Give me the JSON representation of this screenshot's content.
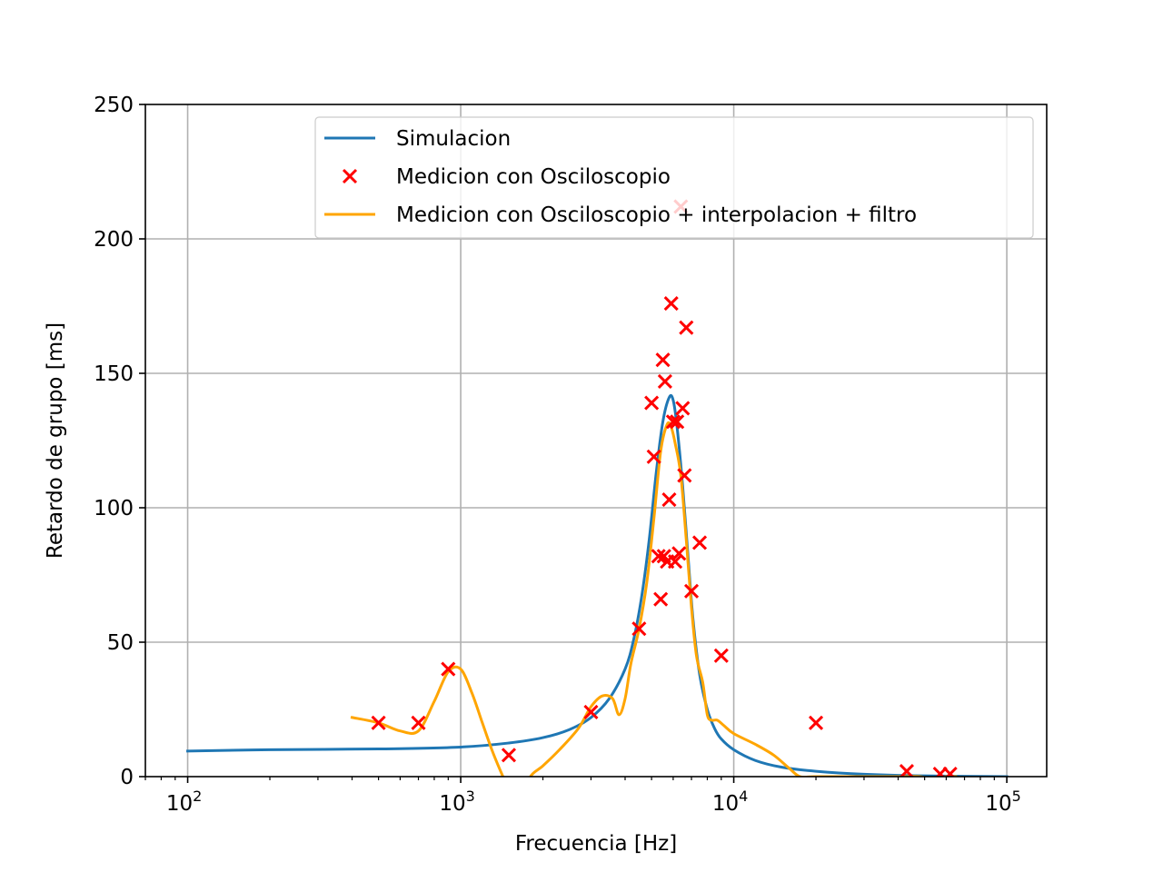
{
  "chart_data": {
    "type": "line",
    "xlabel": "Frecuencia [Hz]",
    "ylabel": "Retardo de grupo [ms]",
    "xscale": "log",
    "xlim": [
      70,
      140000
    ],
    "ylim": [
      0,
      250
    ],
    "grid": true,
    "legend_position": "top-right",
    "x_ticks": [
      {
        "value": 100,
        "base": "10",
        "exp": "2"
      },
      {
        "value": 1000,
        "base": "10",
        "exp": "3"
      },
      {
        "value": 10000,
        "base": "10",
        "exp": "4"
      },
      {
        "value": 100000,
        "base": "10",
        "exp": "5"
      }
    ],
    "y_ticks": [
      {
        "value": 0,
        "label": "0"
      },
      {
        "value": 50,
        "label": "50"
      },
      {
        "value": 100,
        "label": "100"
      },
      {
        "value": 150,
        "label": "150"
      },
      {
        "value": 200,
        "label": "200"
      },
      {
        "value": 250,
        "label": "250"
      }
    ],
    "series": [
      {
        "name": "Simulacion",
        "kind": "line",
        "color": "#1f77b4",
        "x": [
          100,
          200,
          500,
          1000,
          1500,
          2000,
          2500,
          3000,
          3500,
          4000,
          4300,
          4600,
          4900,
          5200,
          5500,
          5800,
          6000,
          6200,
          6500,
          6800,
          7100,
          7500,
          8000,
          8500,
          9000,
          10000,
          12000,
          15000,
          20000,
          30000,
          50000,
          100000
        ],
        "y": [
          9.5,
          10,
          10.3,
          11,
          12.5,
          14.5,
          17.5,
          22,
          29,
          40,
          51,
          67,
          88,
          113,
          132,
          141,
          140,
          130,
          108,
          82,
          58,
          38,
          25,
          18,
          14,
          10,
          6,
          3.5,
          2,
          0.9,
          0.3,
          0
        ]
      },
      {
        "name": "Medicion con Osciloscopio",
        "kind": "scatter",
        "marker": "x",
        "color": "#ff0000",
        "x": [
          500,
          700,
          900,
          1500,
          3000,
          4500,
          5000,
          5100,
          5300,
          5400,
          5500,
          5550,
          5600,
          5700,
          5800,
          5900,
          6000,
          6100,
          6200,
          6300,
          6400,
          6500,
          6600,
          6700,
          7000,
          7500,
          9000,
          20000,
          43000,
          57000,
          62000
        ],
        "y": [
          20,
          20,
          40,
          8,
          24,
          55,
          139,
          119,
          82,
          66,
          155,
          82,
          147,
          80,
          103,
          176,
          132,
          80,
          132,
          83,
          212,
          137,
          112,
          167,
          69,
          87,
          45,
          20,
          2,
          1,
          1
        ]
      },
      {
        "name": "Medicion con Osciloscopio + interpolacion + filtro",
        "kind": "line",
        "color": "#ffa500",
        "x": [
          400,
          500,
          600,
          700,
          800,
          900,
          1000,
          1100,
          1200,
          1300,
          1400,
          1550,
          1650,
          1700,
          1800,
          2000,
          2300,
          2700,
          3000,
          3300,
          3600,
          3800,
          4000,
          4200,
          4500,
          4800,
          5100,
          5400,
          5700,
          5900,
          6100,
          6400,
          6700,
          7000,
          7300,
          7700,
          8000,
          8300,
          8700,
          9200,
          10000,
          12000,
          14000,
          16000,
          17500,
          20000,
          30000,
          40000,
          48000,
          55000,
          60000,
          65000
        ],
        "y": [
          22,
          20,
          17,
          17,
          28,
          39,
          40,
          31,
          20,
          10,
          2,
          -8,
          -12,
          -8,
          0,
          4,
          10,
          18,
          26,
          30,
          29,
          23,
          29,
          42,
          55,
          72,
          96,
          121,
          131,
          130,
          124,
          112,
          88,
          63,
          45,
          35,
          23,
          21,
          21,
          19,
          16,
          12,
          8,
          3,
          0,
          0,
          0,
          0,
          0,
          -1,
          0,
          0
        ]
      }
    ]
  }
}
